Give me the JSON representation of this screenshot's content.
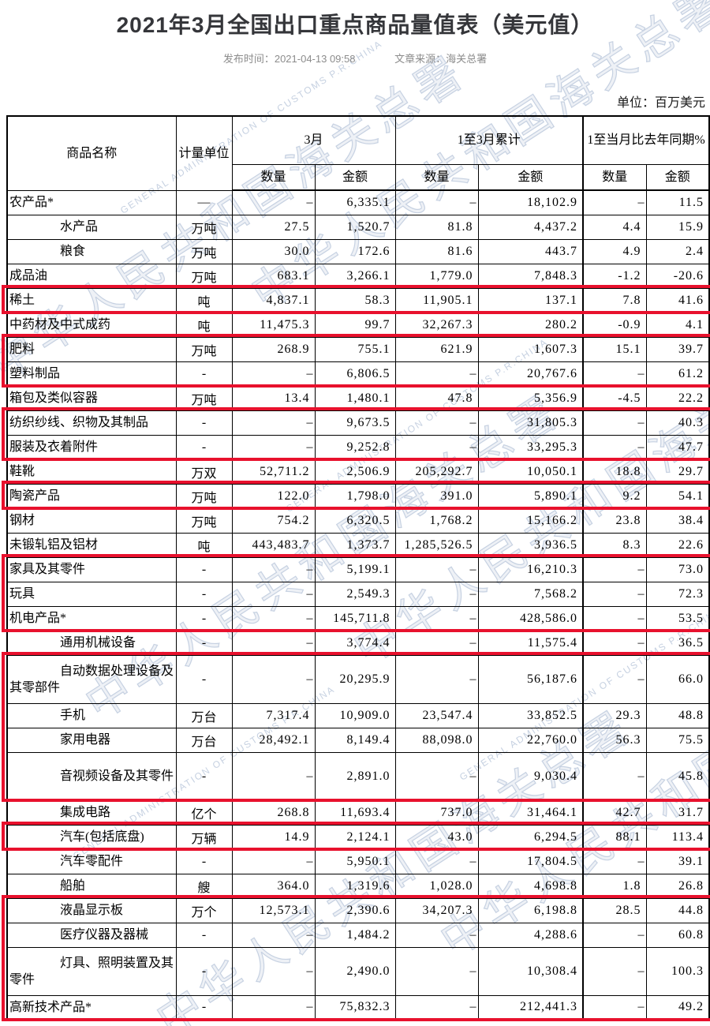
{
  "page": {
    "title": "2021年3月全国出口重点商品量值表（美元值）",
    "publish_time": "发布时间：2021-04-13 09:58",
    "source": "文章来源：海关总署",
    "unit_note": "单位：百万美元"
  },
  "colors": {
    "highlight_red": "#e8112d",
    "title_text": "#35363a",
    "meta_gray": "#8c8c8c",
    "watermark_blue": "#a9bad2",
    "table_border": "#000000"
  },
  "watermark": {
    "cn": "中华人民共和国海关总署",
    "en": "GENERAL ADMINISTRATION OF CUSTOMS P.R.CHINA"
  },
  "table": {
    "headers": {
      "commodity": "商品名称",
      "unit": "计量单位",
      "march": "3月",
      "cumulative": "1至3月累计",
      "yoy": "1至当月比去年同期%",
      "qty": "数量",
      "amt": "金额"
    },
    "highlight_groups": [
      [
        4,
        4
      ],
      [
        6,
        7
      ],
      [
        9,
        10
      ],
      [
        12,
        12
      ],
      [
        15,
        17
      ],
      [
        19,
        22
      ],
      [
        24,
        24
      ],
      [
        27,
        30
      ]
    ],
    "rows": [
      {
        "name": "农产品*",
        "indent": false,
        "tall": false,
        "unit": "—",
        "m_qty": "–",
        "m_amt": "6,335.1",
        "c_qty": "–",
        "c_amt": "18,102.9",
        "y_qty": "–",
        "y_amt": "11.5"
      },
      {
        "name": "水产品",
        "indent": true,
        "tall": false,
        "unit": "万吨",
        "m_qty": "27.5",
        "m_amt": "1,520.7",
        "c_qty": "81.8",
        "c_amt": "4,437.2",
        "y_qty": "4.4",
        "y_amt": "15.9"
      },
      {
        "name": "粮食",
        "indent": true,
        "tall": false,
        "unit": "万吨",
        "m_qty": "30.0",
        "m_amt": "172.6",
        "c_qty": "81.6",
        "c_amt": "443.7",
        "y_qty": "4.9",
        "y_amt": "2.4"
      },
      {
        "name": "成品油",
        "indent": false,
        "tall": false,
        "unit": "万吨",
        "m_qty": "683.1",
        "m_amt": "3,266.1",
        "c_qty": "1,779.0",
        "c_amt": "7,848.3",
        "y_qty": "-1.2",
        "y_amt": "-20.6"
      },
      {
        "name": "稀土",
        "indent": false,
        "tall": false,
        "unit": "吨",
        "m_qty": "4,837.1",
        "m_amt": "58.3",
        "c_qty": "11,905.1",
        "c_amt": "137.1",
        "y_qty": "7.8",
        "y_amt": "41.6"
      },
      {
        "name": "中药材及中式成药",
        "indent": false,
        "tall": false,
        "unit": "吨",
        "m_qty": "11,475.3",
        "m_amt": "99.7",
        "c_qty": "32,267.3",
        "c_amt": "280.2",
        "y_qty": "-0.9",
        "y_amt": "4.1"
      },
      {
        "name": "肥料",
        "indent": false,
        "tall": false,
        "unit": "万吨",
        "m_qty": "268.9",
        "m_amt": "755.1",
        "c_qty": "621.9",
        "c_amt": "1,607.3",
        "y_qty": "15.1",
        "y_amt": "39.7"
      },
      {
        "name": "塑料制品",
        "indent": false,
        "tall": false,
        "unit": "-",
        "m_qty": "–",
        "m_amt": "6,806.5",
        "c_qty": "–",
        "c_amt": "20,767.6",
        "y_qty": "–",
        "y_amt": "61.2"
      },
      {
        "name": "箱包及类似容器",
        "indent": false,
        "tall": false,
        "unit": "万吨",
        "m_qty": "13.4",
        "m_amt": "1,480.1",
        "c_qty": "47.8",
        "c_amt": "5,356.9",
        "y_qty": "-4.5",
        "y_amt": "22.2"
      },
      {
        "name": "纺织纱线、织物及其制品",
        "indent": false,
        "tall": false,
        "unit": "-",
        "m_qty": "–",
        "m_amt": "9,673.5",
        "c_qty": "–",
        "c_amt": "31,805.3",
        "y_qty": "–",
        "y_amt": "40.3"
      },
      {
        "name": "服装及衣着附件",
        "indent": false,
        "tall": false,
        "unit": "-",
        "m_qty": "–",
        "m_amt": "9,252.8",
        "c_qty": "–",
        "c_amt": "33,295.3",
        "y_qty": "–",
        "y_amt": "47.7"
      },
      {
        "name": "鞋靴",
        "indent": false,
        "tall": false,
        "unit": "万双",
        "m_qty": "52,711.2",
        "m_amt": "2,506.9",
        "c_qty": "205,292.7",
        "c_amt": "10,050.1",
        "y_qty": "18.8",
        "y_amt": "29.7"
      },
      {
        "name": "陶瓷产品",
        "indent": false,
        "tall": false,
        "unit": "万吨",
        "m_qty": "122.0",
        "m_amt": "1,798.0",
        "c_qty": "391.0",
        "c_amt": "5,890.1",
        "y_qty": "9.2",
        "y_amt": "54.1"
      },
      {
        "name": "钢材",
        "indent": false,
        "tall": false,
        "unit": "万吨",
        "m_qty": "754.2",
        "m_amt": "6,320.5",
        "c_qty": "1,768.2",
        "c_amt": "15,166.2",
        "y_qty": "23.8",
        "y_amt": "38.4"
      },
      {
        "name": "未锻轧铝及铝材",
        "indent": false,
        "tall": false,
        "unit": "吨",
        "m_qty": "443,483.7",
        "m_amt": "1,373.7",
        "c_qty": "1,285,526.5",
        "c_amt": "3,936.5",
        "y_qty": "8.3",
        "y_amt": "22.6"
      },
      {
        "name": "家具及其零件",
        "indent": false,
        "tall": false,
        "unit": "-",
        "m_qty": "–",
        "m_amt": "5,199.1",
        "c_qty": "–",
        "c_amt": "16,210.3",
        "y_qty": "–",
        "y_amt": "73.0"
      },
      {
        "name": "玩具",
        "indent": false,
        "tall": false,
        "unit": "-",
        "m_qty": "–",
        "m_amt": "2,549.3",
        "c_qty": "–",
        "c_amt": "7,568.2",
        "y_qty": "–",
        "y_amt": "72.3"
      },
      {
        "name": "机电产品*",
        "indent": false,
        "tall": false,
        "unit": "-",
        "m_qty": "–",
        "m_amt": "145,711.8",
        "c_qty": "–",
        "c_amt": "428,586.0",
        "y_qty": "–",
        "y_amt": "53.5"
      },
      {
        "name": "通用机械设备",
        "indent": true,
        "tall": false,
        "unit": "-",
        "m_qty": "–",
        "m_amt": "3,774.4",
        "c_qty": "–",
        "c_amt": "11,575.4",
        "y_qty": "–",
        "y_amt": "36.5"
      },
      {
        "name": "自动数据处理设备及其零部件",
        "indent": true,
        "tall": true,
        "unit": "-",
        "m_qty": "–",
        "m_amt": "20,295.9",
        "c_qty": "–",
        "c_amt": "56,187.6",
        "y_qty": "–",
        "y_amt": "66.0"
      },
      {
        "name": "手机",
        "indent": true,
        "tall": false,
        "unit": "万台",
        "m_qty": "7,317.4",
        "m_amt": "10,909.0",
        "c_qty": "23,547.4",
        "c_amt": "33,852.5",
        "y_qty": "29.3",
        "y_amt": "48.8"
      },
      {
        "name": "家用电器",
        "indent": true,
        "tall": false,
        "unit": "万台",
        "m_qty": "28,492.1",
        "m_amt": "8,149.4",
        "c_qty": "88,098.0",
        "c_amt": "22,760.0",
        "y_qty": "56.3",
        "y_amt": "75.5"
      },
      {
        "name": "音视频设备及其零件",
        "indent": true,
        "tall": true,
        "unit": "-",
        "m_qty": "–",
        "m_amt": "2,891.0",
        "c_qty": "–",
        "c_amt": "9,030.4",
        "y_qty": "–",
        "y_amt": "45.8"
      },
      {
        "name": "集成电路",
        "indent": true,
        "tall": false,
        "unit": "亿个",
        "m_qty": "268.8",
        "m_amt": "11,693.4",
        "c_qty": "737.0",
        "c_amt": "31,464.1",
        "y_qty": "42.7",
        "y_amt": "31.7"
      },
      {
        "name": "汽车(包括底盘)",
        "indent": true,
        "tall": false,
        "unit": "万辆",
        "m_qty": "14.9",
        "m_amt": "2,124.1",
        "c_qty": "43.0",
        "c_amt": "6,294.5",
        "y_qty": "88.1",
        "y_amt": "113.4"
      },
      {
        "name": "汽车零配件",
        "indent": true,
        "tall": false,
        "unit": "-",
        "m_qty": "–",
        "m_amt": "5,950.1",
        "c_qty": "–",
        "c_amt": "17,804.5",
        "y_qty": "–",
        "y_amt": "39.1"
      },
      {
        "name": "船舶",
        "indent": true,
        "tall": false,
        "unit": "艘",
        "m_qty": "364.0",
        "m_amt": "1,319.6",
        "c_qty": "1,028.0",
        "c_amt": "4,698.8",
        "y_qty": "1.8",
        "y_amt": "26.8"
      },
      {
        "name": "液晶显示板",
        "indent": true,
        "tall": false,
        "unit": "万个",
        "m_qty": "12,573.1",
        "m_amt": "2,390.6",
        "c_qty": "34,207.3",
        "c_amt": "6,198.8",
        "y_qty": "28.5",
        "y_amt": "44.8"
      },
      {
        "name": "医疗仪器及器械",
        "indent": true,
        "tall": false,
        "unit": "-",
        "m_qty": "–",
        "m_amt": "1,484.2",
        "c_qty": "–",
        "c_amt": "4,288.6",
        "y_qty": "–",
        "y_amt": "60.8"
      },
      {
        "name": "灯具、照明装置及其零件",
        "indent": true,
        "tall": true,
        "unit": "-",
        "m_qty": "–",
        "m_amt": "2,490.0",
        "c_qty": "–",
        "c_amt": "10,308.4",
        "y_qty": "–",
        "y_amt": "100.3"
      },
      {
        "name": "高新技术产品*",
        "indent": false,
        "tall": false,
        "unit": "-",
        "m_qty": "–",
        "m_amt": "75,832.3",
        "c_qty": "–",
        "c_amt": "212,441.3",
        "y_qty": "–",
        "y_amt": "49.2"
      }
    ]
  }
}
